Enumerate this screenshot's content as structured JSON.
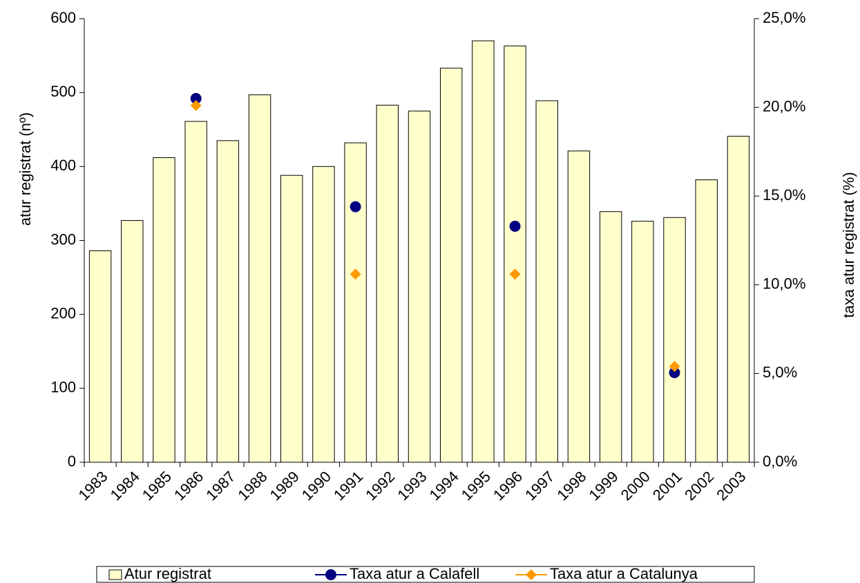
{
  "chart_data": {
    "type": "bar",
    "y_label": "atur registrat (nº)",
    "y2_label": "taxa atur registrat (%)",
    "categories": [
      "1983",
      "1984",
      "1985",
      "1986",
      "1987",
      "1988",
      "1989",
      "1990",
      "1991",
      "1992",
      "1993",
      "1994",
      "1995",
      "1996",
      "1997",
      "1998",
      "1999",
      "2000",
      "2001",
      "2002",
      "2003"
    ],
    "series": [
      {
        "name": "Atur registrat",
        "type": "bar",
        "color": "#ffffcc",
        "values": [
          286,
          327,
          412,
          461,
          435,
          497,
          388,
          400,
          432,
          483,
          475,
          533,
          570,
          563,
          489,
          421,
          339,
          326,
          331,
          382,
          441
        ]
      },
      {
        "name": "Taxa atur a Calafell",
        "type": "line",
        "marker": "circle",
        "color": "#000080",
        "axis": "y2",
        "values": [
          null,
          null,
          null,
          20.5,
          null,
          null,
          null,
          null,
          14.4,
          null,
          null,
          null,
          null,
          13.3,
          null,
          null,
          null,
          null,
          5.05,
          null,
          null
        ]
      },
      {
        "name": "Taxa atur a Catalunya",
        "type": "line",
        "marker": "diamond",
        "color": "#ff9900",
        "axis": "y2",
        "values": [
          null,
          null,
          null,
          20.1,
          null,
          null,
          null,
          null,
          10.6,
          null,
          null,
          null,
          null,
          10.6,
          null,
          null,
          null,
          null,
          5.4,
          null,
          null
        ]
      }
    ],
    "ylim": [
      0,
      600
    ],
    "yticks": [
      0,
      100,
      200,
      300,
      400,
      500,
      600
    ],
    "y2lim": [
      0,
      25
    ],
    "y2ticks": [
      {
        "value": 0,
        "label": "0,0%"
      },
      {
        "value": 5,
        "label": "5,0%"
      },
      {
        "value": 10,
        "label": "10,0%"
      },
      {
        "value": 15,
        "label": "15,0%"
      },
      {
        "value": 20,
        "label": "20,0%"
      },
      {
        "value": 25,
        "label": "25,0%"
      }
    ],
    "legend": "bottom"
  }
}
